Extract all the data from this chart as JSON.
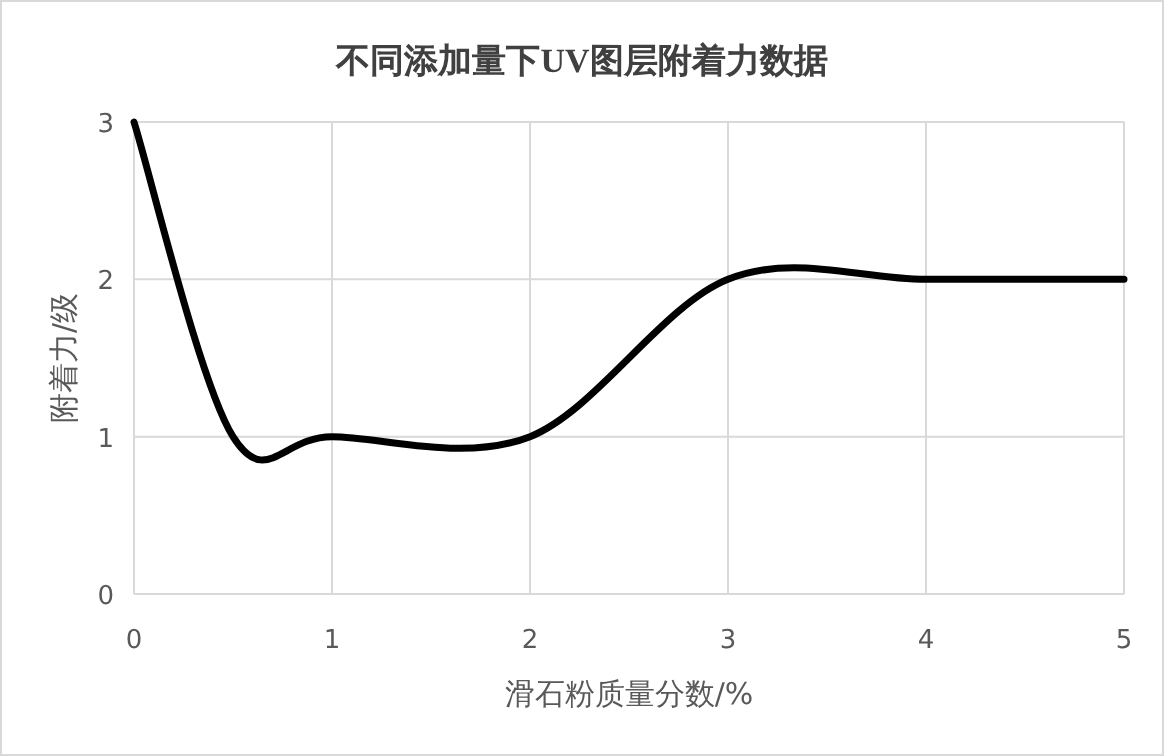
{
  "chart_data": {
    "type": "line",
    "title": "不同添加量下UV图层附着力数据",
    "xlabel": "滑石粉质量分数/%",
    "ylabel": "附着力/级",
    "x": [
      0,
      0.5,
      1,
      2,
      3,
      4,
      5
    ],
    "series": [
      {
        "color": "#000000",
        "values": [
          3,
          1,
          1,
          1,
          2,
          2,
          2
        ]
      }
    ],
    "xlim": [
      0,
      5
    ],
    "xticks": [
      0,
      1,
      2,
      3,
      4,
      5
    ],
    "ylim": [
      0,
      3
    ],
    "yticks": [
      0,
      1,
      2,
      3
    ],
    "grid": true,
    "marker": "none",
    "line_style": "solid"
  }
}
